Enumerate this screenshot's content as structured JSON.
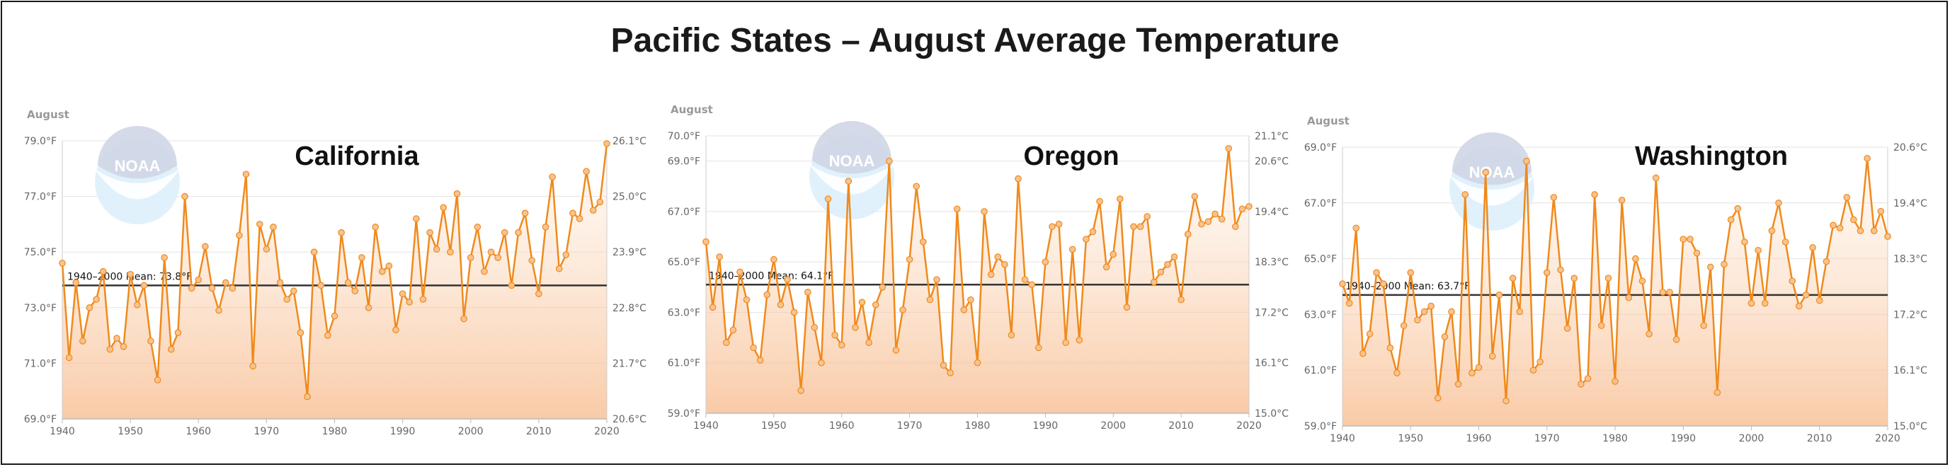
{
  "title": "Pacific States – August Average Temperature",
  "noaa_logo_text": "NOAA",
  "chart_data": [
    {
      "type": "line",
      "state": "California",
      "month_label": "August",
      "x_start": 1940,
      "x_end": 2020,
      "xticks": [
        1940,
        1950,
        1960,
        1970,
        1980,
        1990,
        2000,
        2010,
        2020
      ],
      "ylim": [
        69.0,
        79.0
      ],
      "yticks": [
        "69.0°F",
        "71.0°F",
        "73.0°F",
        "75.0°F",
        "77.0°F",
        "79.0°F"
      ],
      "y2ticks": [
        "20.6°C",
        "21.7°C",
        "22.8°C",
        "23.9°C",
        "25.0°C",
        "26.1°C"
      ],
      "mean": 73.8,
      "mean_label": "1940–2000 Mean: 73.8°F",
      "values": [
        74.6,
        71.2,
        73.9,
        71.8,
        73.0,
        73.3,
        74.3,
        71.5,
        71.9,
        71.6,
        74.2,
        73.1,
        73.8,
        71.8,
        70.4,
        74.8,
        71.5,
        72.1,
        77.0,
        73.7,
        74.0,
        75.2,
        73.7,
        72.9,
        73.9,
        73.7,
        75.6,
        77.8,
        70.9,
        76.0,
        75.1,
        75.9,
        73.9,
        73.3,
        73.6,
        72.1,
        69.8,
        75.0,
        73.8,
        72.0,
        72.7,
        75.7,
        73.9,
        73.6,
        74.8,
        73.0,
        75.9,
        74.3,
        74.5,
        72.2,
        73.5,
        73.2,
        76.2,
        73.3,
        75.7,
        75.1,
        76.6,
        75.0,
        77.1,
        72.6,
        74.8,
        75.9,
        74.3,
        75.0,
        74.8,
        75.7,
        73.8,
        75.7,
        76.4,
        74.7,
        73.5,
        75.9,
        77.7,
        74.4,
        74.9,
        76.4,
        76.2,
        77.9,
        76.5,
        76.8,
        78.9
      ]
    },
    {
      "type": "line",
      "state": "Oregon",
      "month_label": "August",
      "x_start": 1940,
      "x_end": 2020,
      "xticks": [
        1940,
        1950,
        1960,
        1970,
        1980,
        1990,
        2000,
        2010,
        2020
      ],
      "ylim": [
        59.0,
        70.0
      ],
      "yticks": [
        "59.0°F",
        "61.0°F",
        "63.0°F",
        "65.0°F",
        "67.0°F",
        "69.0°F",
        "70.0°F"
      ],
      "y2ticks": [
        "15.0°C",
        "16.1°C",
        "17.2°C",
        "18.3°C",
        "19.4°C",
        "20.6°C",
        "21.1°C"
      ],
      "mean": 64.1,
      "mean_label": "1940–2000 Mean: 64.1°F",
      "values": [
        65.8,
        63.2,
        65.2,
        61.8,
        62.3,
        64.6,
        63.5,
        61.6,
        61.1,
        63.7,
        65.1,
        63.3,
        64.3,
        63.0,
        59.9,
        63.8,
        62.4,
        61.0,
        67.5,
        62.1,
        61.7,
        68.2,
        62.4,
        63.4,
        61.8,
        63.3,
        64.0,
        69.0,
        61.5,
        63.1,
        65.1,
        68.0,
        65.8,
        63.5,
        64.3,
        60.9,
        60.6,
        67.1,
        63.1,
        63.5,
        61.0,
        67.0,
        64.5,
        65.2,
        64.9,
        62.1,
        68.3,
        64.3,
        64.1,
        61.6,
        65.0,
        66.4,
        66.5,
        61.8,
        65.5,
        61.9,
        65.9,
        66.2,
        67.4,
        64.8,
        65.3,
        67.5,
        63.2,
        66.4,
        66.4,
        66.8,
        64.2,
        64.6,
        64.9,
        65.2,
        63.5,
        66.1,
        67.6,
        66.5,
        66.6,
        66.9,
        66.7,
        69.5,
        66.4,
        67.1,
        67.2
      ]
    },
    {
      "type": "line",
      "state": "Washington",
      "month_label": "August",
      "x_start": 1940,
      "x_end": 2020,
      "xticks": [
        1940,
        1950,
        1960,
        1970,
        1980,
        1990,
        2000,
        2010,
        2020
      ],
      "ylim": [
        59.0,
        69.0
      ],
      "yticks": [
        "59.0°F",
        "61.0°F",
        "63.0°F",
        "65.0°F",
        "67.0°F",
        "69.0°F"
      ],
      "y2ticks": [
        "15.0°C",
        "16.1°C",
        "17.2°C",
        "18.3°C",
        "19.4°C",
        "20.6°C"
      ],
      "mean": 63.7,
      "mean_label": "1940–2000 Mean: 63.7°F",
      "values": [
        64.1,
        63.4,
        66.1,
        61.6,
        62.3,
        64.5,
        64.1,
        61.8,
        60.9,
        62.6,
        64.5,
        62.8,
        63.1,
        63.3,
        60.0,
        62.2,
        63.1,
        60.5,
        67.3,
        60.9,
        61.1,
        68.1,
        61.5,
        63.7,
        59.9,
        64.3,
        63.1,
        68.5,
        61.0,
        61.3,
        64.5,
        67.2,
        64.6,
        62.5,
        64.3,
        60.5,
        60.7,
        67.3,
        62.6,
        64.3,
        60.6,
        67.1,
        63.6,
        65.0,
        64.2,
        62.3,
        67.9,
        63.8,
        63.8,
        62.1,
        65.7,
        65.7,
        65.2,
        62.6,
        64.7,
        60.2,
        64.8,
        66.4,
        66.8,
        65.6,
        63.4,
        65.3,
        63.4,
        66.0,
        67.0,
        65.6,
        64.2,
        63.3,
        63.7,
        65.4,
        63.5,
        64.9,
        66.2,
        66.1,
        67.2,
        66.4,
        66.0,
        68.6,
        66.0,
        66.7,
        65.8
      ]
    }
  ]
}
